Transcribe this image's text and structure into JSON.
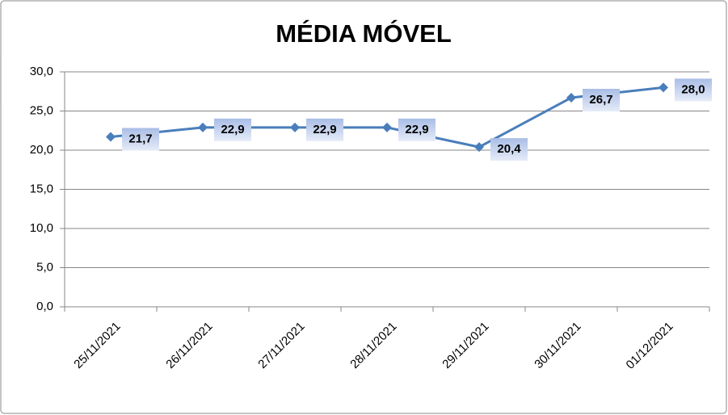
{
  "chart_data": {
    "type": "line",
    "title": "MÉDIA MÓVEL",
    "categories": [
      "25/11/2021",
      "26/11/2021",
      "27/11/2021",
      "28/11/2021",
      "29/11/2021",
      "30/11/2021",
      "01/12/2021"
    ],
    "values": [
      21.7,
      22.9,
      22.9,
      22.9,
      20.4,
      26.7,
      28.0
    ],
    "value_labels": [
      "21,7",
      "22,9",
      "22,9",
      "22,9",
      "20,4",
      "26,7",
      "28,0"
    ],
    "color": "#4a7ebb",
    "ylim": [
      0,
      30
    ],
    "yticks": [
      {
        "value": 0,
        "label": "0,0"
      },
      {
        "value": 5,
        "label": "5,0"
      },
      {
        "value": 10,
        "label": "10,0"
      },
      {
        "value": 15,
        "label": "15,0"
      },
      {
        "value": 20,
        "label": "20,0"
      },
      {
        "value": 25,
        "label": "25,0"
      },
      {
        "value": 30,
        "label": "30,0"
      }
    ],
    "grid": true
  }
}
